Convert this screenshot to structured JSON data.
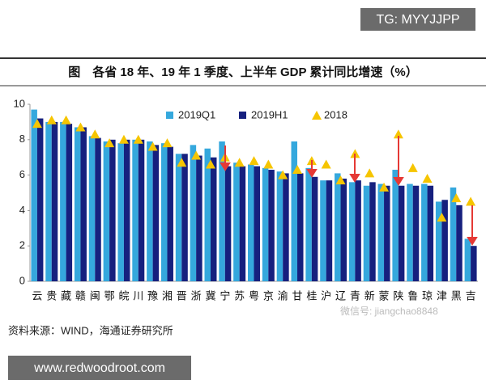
{
  "chart_data": {
    "type": "bar",
    "title": "图　各省 18 年、19 年 1 季度、上半年 GDP 累计同比增速（%）",
    "categories": [
      "云",
      "贵",
      "藏",
      "赣",
      "闽",
      "鄂",
      "皖",
      "川",
      "豫",
      "湘",
      "晋",
      "浙",
      "冀",
      "宁",
      "苏",
      "粤",
      "京",
      "渝",
      "甘",
      "桂",
      "沪",
      "辽",
      "青",
      "新",
      "蒙",
      "陕",
      "鲁",
      "琼",
      "津",
      "黑",
      "吉"
    ],
    "series": [
      {
        "name": "2019Q1",
        "color": "#35a8dd",
        "values": [
          9.7,
          9.0,
          9.0,
          8.7,
          8.2,
          7.9,
          7.8,
          8.0,
          7.9,
          7.8,
          7.2,
          7.7,
          7.5,
          7.9,
          6.7,
          6.6,
          6.4,
          6.2,
          7.9,
          6.4,
          5.7,
          6.1,
          5.6,
          5.4,
          5.5,
          6.3,
          5.5,
          5.5,
          4.5,
          5.3,
          2.4
        ]
      },
      {
        "name": "2019H1",
        "color": "#16207e",
        "values": [
          9.2,
          9.0,
          8.9,
          8.7,
          8.1,
          8.0,
          8.0,
          8.0,
          7.7,
          7.6,
          7.2,
          7.1,
          7.0,
          6.5,
          6.5,
          6.5,
          6.3,
          6.1,
          6.1,
          5.9,
          5.7,
          5.8,
          5.7,
          5.6,
          5.4,
          5.4,
          5.4,
          5.4,
          4.6,
          4.3,
          2.0
        ]
      },
      {
        "name": "2018",
        "color": "#f6c500",
        "values": [
          8.9,
          9.1,
          9.1,
          8.7,
          8.3,
          7.8,
          8.0,
          8.0,
          7.6,
          7.8,
          6.7,
          7.1,
          6.6,
          7.0,
          6.7,
          6.8,
          6.6,
          6.0,
          6.3,
          6.8,
          6.6,
          5.7,
          7.2,
          6.1,
          5.3,
          8.3,
          6.4,
          5.8,
          3.6,
          4.7,
          4.5
        ]
      }
    ],
    "ylim": [
      0,
      10
    ],
    "yticks": [
      0,
      2,
      4,
      6,
      8,
      10
    ],
    "source": "资料来源：WIND，海通证券研究所"
  },
  "watermarks": [
    "TG: MYYJJPP",
    "微信号: jiangchao8848",
    "www.redwoodroot.com"
  ]
}
